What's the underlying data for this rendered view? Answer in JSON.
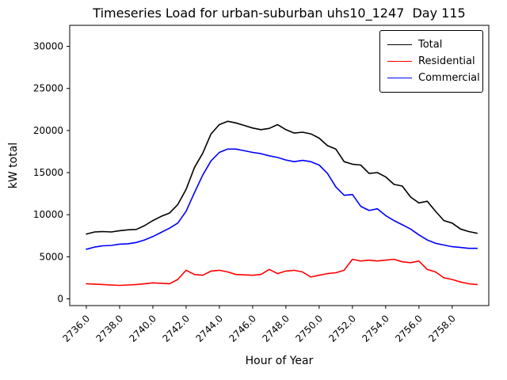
{
  "title": "Timeseries Load for urban-suburban uhs10_1247  Day 115",
  "chart_data": {
    "type": "line",
    "title": "Timeseries Load for urban-suburban uhs10_1247  Day 115",
    "xlabel": "Hour of Year",
    "ylabel": "kW total",
    "grid": false,
    "legend_position": "upper right",
    "xlim": [
      2735.0,
      2760.2
    ],
    "ylim": [
      -800,
      32500
    ],
    "xticks": [
      2736,
      2738,
      2740,
      2742,
      2744,
      2746,
      2748,
      2750,
      2752,
      2754,
      2756,
      2758
    ],
    "xtick_labels": [
      "2736.0",
      "2738.0",
      "2740.0",
      "2742.0",
      "2744.0",
      "2746.0",
      "2748.0",
      "2750.0",
      "2752.0",
      "2754.0",
      "2756.0",
      "2758.0"
    ],
    "yticks": [
      0,
      5000,
      10000,
      15000,
      20000,
      25000,
      30000
    ],
    "ytick_labels": [
      "0",
      "5000",
      "10000",
      "15000",
      "20000",
      "25000",
      "30000"
    ],
    "x": [
      2736.0,
      2736.5,
      2737.0,
      2737.5,
      2738.0,
      2738.5,
      2739.0,
      2739.5,
      2740.0,
      2740.5,
      2741.0,
      2741.5,
      2742.0,
      2742.5,
      2743.0,
      2743.5,
      2744.0,
      2744.5,
      2745.0,
      2745.5,
      2746.0,
      2746.5,
      2747.0,
      2747.5,
      2748.0,
      2748.5,
      2749.0,
      2749.5,
      2750.0,
      2750.5,
      2751.0,
      2751.5,
      2752.0,
      2752.5,
      2753.0,
      2753.5,
      2754.0,
      2754.5,
      2755.0,
      2755.5,
      2756.0,
      2756.5,
      2757.0,
      2757.5,
      2758.0,
      2758.5,
      2759.0,
      2759.5
    ],
    "series": [
      {
        "name": "Total",
        "color": "#000000",
        "values": [
          7700,
          7950,
          8000,
          7950,
          8100,
          8200,
          8250,
          8700,
          9300,
          9800,
          10200,
          11200,
          13000,
          15600,
          17300,
          19600,
          20700,
          21100,
          20900,
          20600,
          20300,
          20100,
          20250,
          20700,
          20100,
          19700,
          19800,
          19600,
          19100,
          18200,
          17800,
          16300,
          16000,
          15900,
          14900,
          15000,
          14500,
          13600,
          13400,
          12100,
          11400,
          11600,
          10400,
          9300,
          9000,
          8300,
          8000,
          7800
        ]
      },
      {
        "name": "Residential",
        "color": "#ff0000",
        "values": [
          1800,
          1750,
          1700,
          1650,
          1600,
          1650,
          1700,
          1800,
          1900,
          1850,
          1800,
          2300,
          3400,
          2900,
          2800,
          3300,
          3400,
          3200,
          2900,
          2850,
          2800,
          2900,
          3500,
          3000,
          3300,
          3400,
          3200,
          2600,
          2800,
          3000,
          3100,
          3400,
          4700,
          4500,
          4600,
          4500,
          4600,
          4700,
          4400,
          4300,
          4500,
          3500,
          3200,
          2500,
          2300,
          2000,
          1800,
          1700
        ]
      },
      {
        "name": "Commercial",
        "color": "#0000ff",
        "values": [
          5900,
          6150,
          6300,
          6350,
          6500,
          6550,
          6700,
          7000,
          7400,
          7900,
          8400,
          9000,
          10400,
          12600,
          14700,
          16400,
          17400,
          17800,
          17800,
          17600,
          17400,
          17250,
          17000,
          16800,
          16500,
          16300,
          16450,
          16300,
          15900,
          14900,
          13300,
          12300,
          12400,
          11000,
          10500,
          10700,
          9900,
          9300,
          8800,
          8300,
          7600,
          7000,
          6600,
          6400,
          6200,
          6100,
          6000,
          6000
        ]
      }
    ]
  }
}
